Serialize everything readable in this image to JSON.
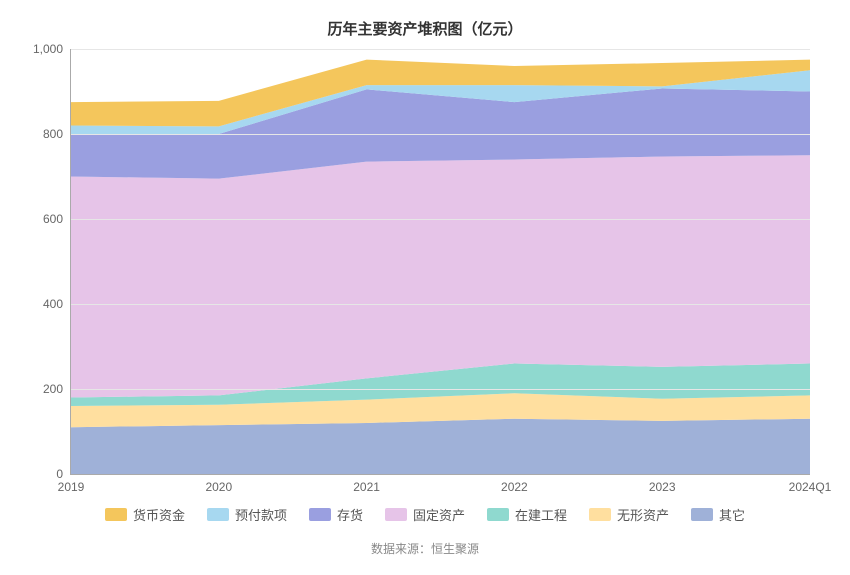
{
  "chart": {
    "type": "stacked-area",
    "title": "历年主要资产堆积图（亿元）",
    "title_fontsize": 15,
    "title_color": "#333333",
    "background_color": "#ffffff",
    "grid_color": "#e6e6e6",
    "axis_color": "#aaaaaa",
    "tick_fontsize": 12,
    "tick_color": "#666666",
    "ylim": [
      0,
      1000
    ],
    "ytick_step": 200,
    "y_number_format": "comma",
    "categories": [
      "2019",
      "2020",
      "2021",
      "2022",
      "2023",
      "2024Q1"
    ],
    "series": [
      {
        "name": "其它",
        "color": "#9fb1d8",
        "values": [
          110,
          115,
          120,
          130,
          125,
          130
        ]
      },
      {
        "name": "无形资产",
        "color": "#ffdf9f",
        "values": [
          50,
          48,
          55,
          60,
          52,
          55
        ]
      },
      {
        "name": "在建工程",
        "color": "#8fd9cf",
        "values": [
          20,
          22,
          50,
          70,
          75,
          75
        ]
      },
      {
        "name": "固定资产",
        "color": "#e6c4e8",
        "values": [
          520,
          510,
          510,
          480,
          495,
          490
        ]
      },
      {
        "name": "存货",
        "color": "#9a9fe0",
        "values": [
          100,
          105,
          170,
          135,
          160,
          150
        ]
      },
      {
        "name": "预付款项",
        "color": "#a7d8f0",
        "values": [
          20,
          18,
          10,
          40,
          5,
          50
        ]
      },
      {
        "name": "货币资金",
        "color": "#f4c65c",
        "values": [
          55,
          60,
          60,
          45,
          55,
          25
        ]
      }
    ],
    "legend_fontsize": 13,
    "legend_swatch_width": 22,
    "legend_swatch_height": 13,
    "source_label": "数据来源：恒生聚源",
    "source_fontsize": 12,
    "source_color": "#888888"
  }
}
